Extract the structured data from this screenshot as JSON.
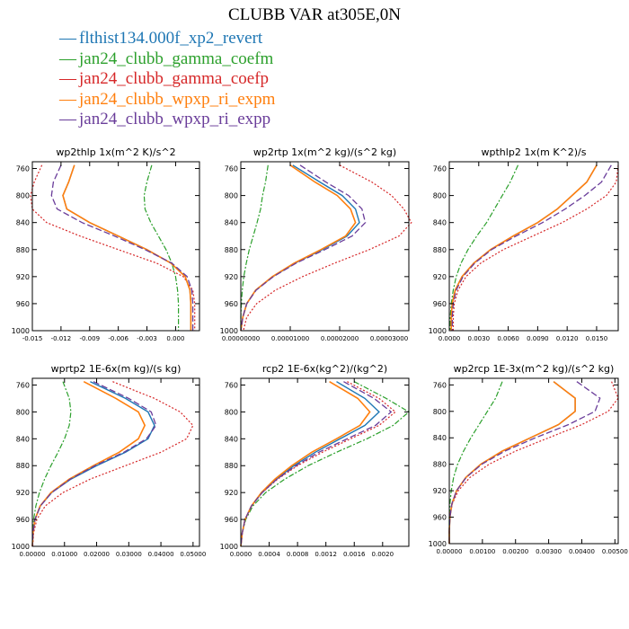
{
  "title": "CLUBB VAR at305E,0N",
  "legend": [
    {
      "name": "flthist134.000f_xp2_revert",
      "color": "#1f77b4"
    },
    {
      "name": "jan24_clubb_gamma_coefm",
      "color": "#2ca02c"
    },
    {
      "name": "jan24_clubb_gamma_coefp",
      "color": "#d62728"
    },
    {
      "name": "jan24_clubb_wpxp_ri_expm",
      "color": "#ff7f0e"
    },
    {
      "name": "jan24_clubb_wpxp_ri_expp",
      "color": "#6a3d9a"
    }
  ],
  "chart_data": [
    {
      "type": "line",
      "title": "wp2thlp   1x(m^2 K)/s^2",
      "xlim": [
        -0.015,
        0.0025
      ],
      "ylim": [
        1000,
        750
      ],
      "xticks": [
        -0.015,
        -0.012,
        -0.009,
        -0.006,
        -0.003,
        0.0
      ],
      "xtick_labels": [
        "-0.015",
        "-0.012",
        "-0.009",
        "-0.006",
        "-0.003",
        "0.000"
      ],
      "yticks": [
        760,
        800,
        840,
        880,
        920,
        960,
        1000
      ],
      "y": [
        755,
        780,
        800,
        820,
        840,
        860,
        880,
        900,
        920,
        940,
        960,
        980,
        1000
      ],
      "series": [
        {
          "name": "flthist134.000f_xp2_revert",
          "x": [
            -0.0106,
            -0.0112,
            -0.0118,
            -0.0114,
            -0.009,
            -0.006,
            -0.003,
            -0.0005,
            0.001,
            0.0015,
            0.0016,
            0.0016,
            0.0016
          ]
        },
        {
          "name": "jan24_clubb_gamma_coefm",
          "x": [
            -0.0025,
            -0.003,
            -0.0033,
            -0.0032,
            -0.0026,
            -0.0018,
            -0.001,
            -0.0004,
            0.0,
            0.0002,
            0.0003,
            0.0003,
            0.0003
          ]
        },
        {
          "name": "jan24_clubb_gamma_coefp",
          "x": [
            -0.014,
            -0.0148,
            -0.0152,
            -0.015,
            -0.0135,
            -0.01,
            -0.006,
            -0.002,
            0.0008,
            0.0018,
            0.002,
            0.002,
            0.002
          ]
        },
        {
          "name": "jan24_clubb_wpxp_ri_expm",
          "x": [
            -0.0106,
            -0.0112,
            -0.0118,
            -0.0114,
            -0.009,
            -0.006,
            -0.003,
            -0.0005,
            0.001,
            0.0015,
            0.0016,
            0.0016,
            0.0016
          ]
        },
        {
          "name": "jan24_clubb_wpxp_ri_expp",
          "x": [
            -0.012,
            -0.0128,
            -0.013,
            -0.0124,
            -0.0098,
            -0.0064,
            -0.0032,
            -0.0004,
            0.0012,
            0.0017,
            0.0018,
            0.0018,
            0.0018
          ]
        }
      ]
    },
    {
      "type": "line",
      "title": "wp2rtp   1x(m^2 kg)/(s^2 kg)",
      "xlim": [
        0,
        3.4e-05
      ],
      "ylim": [
        1000,
        750
      ],
      "xticks": [
        0,
        1e-05,
        2e-05,
        3e-05
      ],
      "xtick_labels": [
        "0.00000000",
        "0.00001000",
        "0.00002000",
        "0.00003000"
      ],
      "yticks": [
        760,
        800,
        840,
        880,
        920,
        960,
        1000
      ],
      "y": [
        755,
        780,
        800,
        820,
        840,
        860,
        880,
        900,
        920,
        940,
        960,
        980,
        1000
      ],
      "series": [
        {
          "name": "flthist134.000f_xp2_revert",
          "x": [
            1.05e-05,
            1.6e-05,
            2.05e-05,
            2.32e-05,
            2.4e-05,
            2.15e-05,
            1.65e-05,
            1.1e-05,
            6.5e-06,
            3e-06,
            1.2e-06,
            4e-07,
            0.0
          ]
        },
        {
          "name": "jan24_clubb_gamma_coefm",
          "x": [
            5.5e-06,
            5e-06,
            4.4e-06,
            4e-06,
            3.3e-06,
            2.5e-06,
            1.7e-06,
            1.1e-06,
            6e-07,
            3e-07,
            1e-07,
            0.0,
            0.0
          ]
        },
        {
          "name": "jan24_clubb_gamma_coefp",
          "x": [
            2e-05,
            2.65e-05,
            3.05e-05,
            3.3e-05,
            3.45e-05,
            3.2e-05,
            2.6e-05,
            1.9e-05,
            1.25e-05,
            7e-06,
            3.2e-06,
            1.2e-06,
            5e-07
          ]
        },
        {
          "name": "jan24_clubb_wpxp_ri_expm",
          "x": [
            1e-05,
            1.5e-05,
            1.95e-05,
            2.22e-05,
            2.32e-05,
            2.12e-05,
            1.62e-05,
            1.08e-05,
            6.4e-06,
            3e-06,
            1.2e-06,
            4e-07,
            0.0
          ]
        },
        {
          "name": "jan24_clubb_wpxp_ri_expp",
          "x": [
            1.2e-05,
            1.72e-05,
            2.18e-05,
            2.45e-05,
            2.52e-05,
            2.25e-05,
            1.7e-05,
            1.12e-05,
            6.6e-06,
            3.1e-06,
            1.2e-06,
            4e-07,
            0.0
          ]
        }
      ]
    },
    {
      "type": "line",
      "title": "wpthlp2   1x(m K^2)/s",
      "xlim": [
        0,
        0.0172
      ],
      "ylim": [
        1000,
        750
      ],
      "xticks": [
        0,
        0.003,
        0.006,
        0.009,
        0.012,
        0.015
      ],
      "xtick_labels": [
        "0.0000",
        "0.0030",
        "0.0060",
        "0.0090",
        "0.0120",
        "0.0150"
      ],
      "yticks": [
        760,
        800,
        840,
        880,
        920,
        960,
        1000
      ],
      "y": [
        755,
        780,
        800,
        820,
        840,
        860,
        880,
        900,
        920,
        940,
        960,
        980,
        1000
      ],
      "series": [
        {
          "name": "flthist134.000f_xp2_revert",
          "x": [
            0.015,
            0.014,
            0.0125,
            0.011,
            0.009,
            0.0065,
            0.0042,
            0.0025,
            0.0013,
            0.0006,
            0.0003,
            0.0002,
            0.0002
          ]
        },
        {
          "name": "jan24_clubb_gamma_coefm",
          "x": [
            0.007,
            0.0062,
            0.0054,
            0.0046,
            0.0038,
            0.0028,
            0.0019,
            0.0012,
            0.0007,
            0.0004,
            0.0002,
            0.0001,
            0.0001
          ]
        },
        {
          "name": "jan24_clubb_gamma_coefp",
          "x": [
            0.0172,
            0.017,
            0.016,
            0.014,
            0.0115,
            0.0085,
            0.0055,
            0.0032,
            0.0017,
            0.0009,
            0.0005,
            0.0004,
            0.0004
          ]
        },
        {
          "name": "jan24_clubb_wpxp_ri_expm",
          "x": [
            0.015,
            0.014,
            0.0125,
            0.011,
            0.009,
            0.0065,
            0.0042,
            0.0025,
            0.0013,
            0.0006,
            0.0003,
            0.0002,
            0.0002
          ]
        },
        {
          "name": "jan24_clubb_wpxp_ri_expp",
          "x": [
            0.0165,
            0.0155,
            0.0138,
            0.0118,
            0.0095,
            0.0068,
            0.0043,
            0.0026,
            0.0014,
            0.0007,
            0.0004,
            0.0003,
            0.0003
          ]
        }
      ]
    },
    {
      "type": "line",
      "title": "wprtp2   1E-6x(m kg)/(s kg)",
      "xlim": [
        0,
        0.052
      ],
      "ylim": [
        1000,
        750
      ],
      "xticks": [
        0,
        0.01,
        0.02,
        0.03,
        0.04,
        0.05
      ],
      "xtick_labels": [
        "0.00000",
        "0.01000",
        "0.02000",
        "0.03000",
        "0.04000",
        "0.05000"
      ],
      "yticks": [
        760,
        800,
        840,
        880,
        920,
        960,
        1000
      ],
      "y": [
        755,
        780,
        800,
        820,
        840,
        860,
        880,
        900,
        920,
        940,
        960,
        980,
        1000
      ],
      "series": [
        {
          "name": "flthist134.000f_xp2_revert",
          "x": [
            0.018,
            0.029,
            0.036,
            0.038,
            0.036,
            0.029,
            0.02,
            0.012,
            0.006,
            0.0025,
            0.0008,
            0.0002,
            0.0
          ]
        },
        {
          "name": "jan24_clubb_gamma_coefm",
          "x": [
            0.0095,
            0.0115,
            0.012,
            0.0115,
            0.01,
            0.008,
            0.0058,
            0.0038,
            0.0022,
            0.0011,
            0.0004,
            0.0001,
            0.0
          ]
        },
        {
          "name": "jan24_clubb_gamma_coefp",
          "x": [
            0.025,
            0.038,
            0.046,
            0.05,
            0.048,
            0.04,
            0.029,
            0.018,
            0.0095,
            0.004,
            0.0014,
            0.0004,
            0.0001
          ]
        },
        {
          "name": "jan24_clubb_wpxp_ri_expm",
          "x": [
            0.016,
            0.026,
            0.033,
            0.035,
            0.033,
            0.027,
            0.019,
            0.0115,
            0.0058,
            0.0024,
            0.0008,
            0.0002,
            0.0
          ]
        },
        {
          "name": "jan24_clubb_wpxp_ri_expp",
          "x": [
            0.019,
            0.03,
            0.037,
            0.0385,
            0.0355,
            0.0285,
            0.0195,
            0.0118,
            0.006,
            0.0025,
            0.0008,
            0.0002,
            0.0
          ]
        }
      ]
    },
    {
      "type": "line",
      "title": "rcp2   1E-6x(kg^2)/(kg^2)",
      "xlim": [
        0,
        0.00237
      ],
      "ylim": [
        1000,
        750
      ],
      "xticks": [
        0,
        0.0004,
        0.0008,
        0.0012,
        0.0016,
        0.002
      ],
      "xtick_labels": [
        "0.0000",
        "0.0004",
        "0.0008",
        "0.0012",
        "0.0016",
        "0.0020"
      ],
      "yticks": [
        760,
        800,
        840,
        880,
        920,
        960,
        1000
      ],
      "y": [
        755,
        780,
        800,
        820,
        840,
        860,
        880,
        900,
        920,
        940,
        960,
        980,
        1000
      ],
      "series": [
        {
          "name": "flthist134.000f_xp2_revert",
          "x": [
            0.00135,
            0.00175,
            0.00195,
            0.00175,
            0.0014,
            0.00105,
            0.00075,
            0.0005,
            0.0003,
            0.00015,
            6e-05,
            2e-05,
            0.0
          ]
        },
        {
          "name": "jan24_clubb_gamma_coefm",
          "x": [
            0.0016,
            0.00205,
            0.00237,
            0.00215,
            0.00178,
            0.00135,
            0.00095,
            0.00062,
            0.00035,
            0.00017,
            7e-05,
            2e-05,
            0.0
          ]
        },
        {
          "name": "jan24_clubb_gamma_coefp",
          "x": [
            0.0015,
            0.00195,
            0.00218,
            0.00195,
            0.00155,
            0.00115,
            0.0008,
            0.00052,
            0.0003,
            0.00015,
            6e-05,
            2e-05,
            0.0
          ]
        },
        {
          "name": "jan24_clubb_wpxp_ri_expm",
          "x": [
            0.00125,
            0.00165,
            0.00182,
            0.00168,
            0.00135,
            0.001,
            0.00072,
            0.00048,
            0.00029,
            0.00015,
            6e-05,
            2e-05,
            0.0
          ]
        },
        {
          "name": "jan24_clubb_wpxp_ri_expp",
          "x": [
            0.00145,
            0.00188,
            0.00212,
            0.0019,
            0.0015,
            0.0011,
            0.00078,
            0.00051,
            0.0003,
            0.00015,
            6e-05,
            2e-05,
            0.0
          ]
        }
      ]
    },
    {
      "type": "line",
      "title": "wp2rcp   1E-3x(m^2 kg)/(s^2 kg)",
      "xlim": [
        0,
        0.0051
      ],
      "ylim": [
        1000,
        750
      ],
      "xticks": [
        0,
        0.001,
        0.002,
        0.003,
        0.004,
        0.005
      ],
      "xtick_labels": [
        "0.00000",
        "0.00100",
        "0.00200",
        "0.00300",
        "0.00400",
        "0.00500"
      ],
      "yticks": [
        760,
        800,
        840,
        880,
        920,
        960,
        1000
      ],
      "y": [
        755,
        780,
        800,
        820,
        840,
        860,
        880,
        900,
        920,
        940,
        960,
        980,
        1000
      ],
      "series": [
        {
          "name": "flthist134.000f_xp2_revert",
          "x": [
            0.00315,
            0.0038,
            0.0038,
            0.0033,
            0.00245,
            0.0016,
            0.00095,
            0.0005,
            0.00022,
            8e-05,
            2e-05,
            0.0,
            0.0
          ]
        },
        {
          "name": "jan24_clubb_gamma_coefm",
          "x": [
            0.0016,
            0.0014,
            0.00115,
            0.0009,
            0.00065,
            0.00043,
            0.00025,
            0.00013,
            6e-05,
            2e-05,
            0.0,
            0.0,
            0.0
          ]
        },
        {
          "name": "jan24_clubb_gamma_coefp",
          "x": [
            0.0049,
            0.0051,
            0.0048,
            0.004,
            0.003,
            0.002,
            0.0012,
            0.00062,
            0.00027,
            9e-05,
            2e-05,
            0.0,
            0.0
          ]
        },
        {
          "name": "jan24_clubb_wpxp_ri_expm",
          "x": [
            0.00315,
            0.0038,
            0.0038,
            0.0033,
            0.00245,
            0.0016,
            0.00095,
            0.0005,
            0.00022,
            8e-05,
            2e-05,
            0.0,
            0.0
          ]
        },
        {
          "name": "jan24_clubb_wpxp_ri_expp",
          "x": [
            0.00385,
            0.00455,
            0.0044,
            0.0036,
            0.0026,
            0.00168,
            0.00098,
            0.00051,
            0.00022,
            8e-05,
            2e-05,
            0.0,
            0.0
          ]
        }
      ]
    }
  ]
}
